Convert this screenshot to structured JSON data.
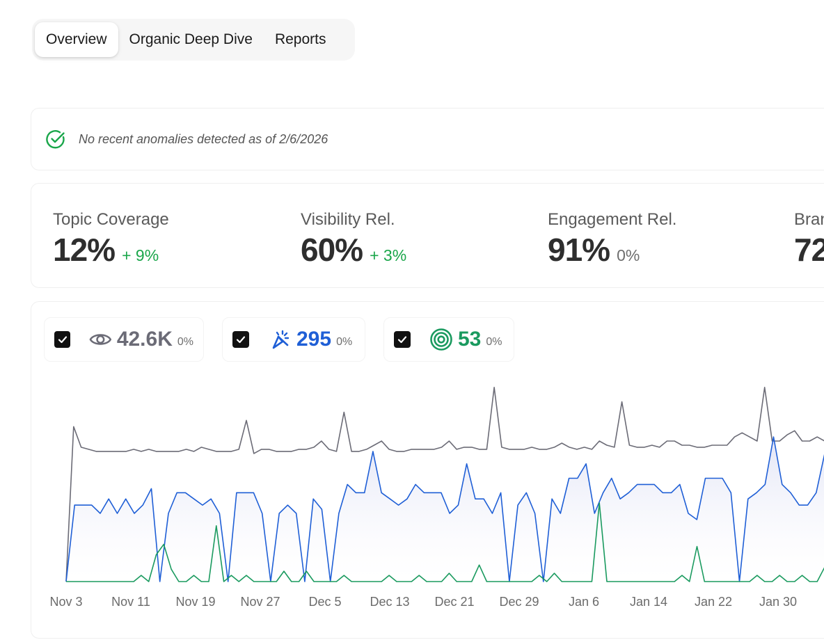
{
  "tabs": [
    {
      "label": "Overview",
      "active": true
    },
    {
      "label": "Organic Deep Dive",
      "active": false
    },
    {
      "label": "Reports",
      "active": false
    }
  ],
  "anomaly": {
    "text": "No recent anomalies detected as of 2/6/2026",
    "icon": "check-circle-icon",
    "color": "#1aa64a"
  },
  "metrics": [
    {
      "label": "Topic Coverage",
      "value": "12%",
      "change": "+ 9%",
      "trend": "positive"
    },
    {
      "label": "Visibility Rel.",
      "value": "60%",
      "change": "+ 3%",
      "trend": "positive"
    },
    {
      "label": "Engagement Rel.",
      "value": "91%",
      "change": "0%",
      "trend": "neutral"
    },
    {
      "label": "Bran",
      "value": "72",
      "change": "",
      "trend": "neutral"
    }
  ],
  "legend": [
    {
      "icon": "eye-icon",
      "value": "42.6K",
      "change": "0%",
      "color": "#6b6b76",
      "checked": true
    },
    {
      "icon": "cursor-click-icon",
      "value": "295",
      "change": "0%",
      "color": "#1f5fd6",
      "checked": true
    },
    {
      "icon": "target-icon",
      "value": "53",
      "change": "0%",
      "color": "#1a9a5f",
      "checked": true
    }
  ],
  "chart_data": {
    "type": "line",
    "x_ticks": [
      "Nov 3",
      "Nov 11",
      "Nov 19",
      "Nov 27",
      "Dec 5",
      "Dec 13",
      "Dec 21",
      "Dec 29",
      "Jan 6",
      "Jan 14",
      "Jan 22",
      "Jan 30"
    ],
    "y_hidden": true,
    "series": [
      {
        "color": "#6b6b76",
        "fill": false,
        "values": [
          0,
          0.75,
          0.65,
          0.64,
          0.63,
          0.63,
          0.63,
          0.63,
          0.63,
          0.64,
          0.63,
          0.64,
          0.63,
          0.63,
          0.63,
          0.63,
          0.64,
          0.63,
          0.65,
          0.64,
          0.63,
          0.63,
          0.63,
          0.64,
          0.78,
          0.62,
          0.64,
          0.64,
          0.63,
          0.63,
          0.63,
          0.64,
          0.64,
          0.65,
          0.68,
          0.64,
          0.63,
          0.82,
          0.63,
          0.63,
          0.64,
          0.66,
          0.68,
          0.64,
          0.63,
          0.63,
          0.64,
          0.64,
          0.64,
          0.64,
          0.65,
          0.68,
          0.64,
          0.65,
          0.65,
          0.64,
          0.64,
          0.94,
          0.65,
          0.64,
          0.64,
          0.64,
          0.65,
          0.64,
          0.64,
          0.65,
          0.67,
          0.65,
          0.64,
          0.65,
          0.64,
          0.68,
          0.66,
          0.65,
          0.87,
          0.66,
          0.65,
          0.65,
          0.66,
          0.65,
          0.68,
          0.68,
          0.66,
          0.66,
          0.65,
          0.65,
          0.66,
          0.66,
          0.66,
          0.7,
          0.72,
          0.7,
          0.68,
          0.94,
          0.68,
          0.68,
          0.71,
          0.73,
          0.68,
          0.68,
          0.7,
          0.68
        ]
      },
      {
        "color": "#1f5fd6",
        "fill": true,
        "values": [
          0,
          0.37,
          0.37,
          0.37,
          0.33,
          0.4,
          0.33,
          0.4,
          0.33,
          0.37,
          0.45,
          0,
          0.33,
          0.43,
          0.43,
          0.4,
          0.37,
          0.4,
          0.33,
          0,
          0.43,
          0.43,
          0.43,
          0.33,
          0,
          0.33,
          0.37,
          0.33,
          0,
          0.4,
          0.35,
          0,
          0.33,
          0.47,
          0.43,
          0.43,
          0.63,
          0.43,
          0.4,
          0.37,
          0.4,
          0.47,
          0.43,
          0.43,
          0.43,
          0.33,
          0.37,
          0.57,
          0.4,
          0.4,
          0.33,
          0.43,
          0,
          0.37,
          0.43,
          0.33,
          0,
          0.4,
          0.33,
          0.5,
          0.5,
          0.57,
          0.33,
          0.43,
          0.5,
          0.4,
          0.43,
          0.47,
          0.47,
          0.47,
          0.43,
          0.43,
          0.47,
          0.33,
          0.3,
          0.5,
          0.5,
          0.5,
          0.43,
          0,
          0.4,
          0.43,
          0.47,
          0.7,
          0.47,
          0.43,
          0.37,
          0.37,
          0.43,
          0.62
        ]
      },
      {
        "color": "#1a9a5f",
        "fill": false,
        "values": [
          0,
          0,
          0,
          0,
          0,
          0,
          0,
          0,
          0,
          0,
          0.03,
          0,
          0.13,
          0.18,
          0.06,
          0,
          0,
          0.03,
          0,
          0,
          0.27,
          0,
          0.03,
          0,
          0.03,
          0,
          0,
          0,
          0,
          0.05,
          0,
          0,
          0.05,
          0,
          0,
          0,
          0,
          0.03,
          0,
          0,
          0,
          0,
          0,
          0.03,
          0,
          0,
          0,
          0.03,
          0,
          0,
          0,
          0.04,
          0,
          0,
          0,
          0.08,
          0,
          0,
          0,
          0,
          0,
          0,
          0,
          0.03,
          0,
          0.04,
          0,
          0,
          0,
          0,
          0,
          0.38,
          0,
          0,
          0,
          0,
          0,
          0,
          0,
          0,
          0,
          0,
          0.03,
          0,
          0.17,
          0,
          0,
          0,
          0,
          0,
          0,
          0,
          0.03,
          0,
          0,
          0.03,
          0,
          0,
          0.03,
          0,
          0,
          0.07
        ]
      }
    ]
  }
}
